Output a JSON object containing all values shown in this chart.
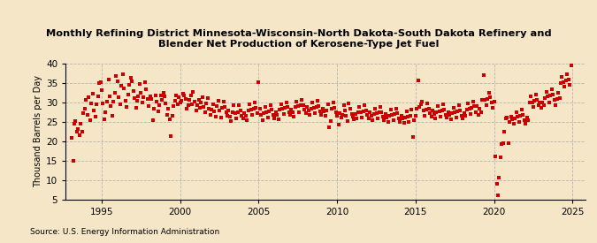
{
  "title": "Monthly Refining District Minnesota-Wisconsin-North Dakota-South Dakota Refinery and\nBlender Net Production of Kerosene-Type Jet Fuel",
  "ylabel": "Thousand Barrels per Day",
  "source": "Source: U.S. Energy Information Administration",
  "background_color": "#f5e6c8",
  "plot_bg_color": "#f5e6c8",
  "marker_color": "#cc0000",
  "marker_size": 5,
  "ylim": [
    5,
    40
  ],
  "yticks": [
    5,
    10,
    15,
    20,
    25,
    30,
    35,
    40
  ],
  "xlim_start": 1992.7,
  "xlim_end": 2025.8,
  "xticks": [
    1995,
    2000,
    2005,
    2010,
    2015,
    2020,
    2025
  ],
  "data": [
    [
      1993.08,
      20.8
    ],
    [
      1993.17,
      15.0
    ],
    [
      1993.25,
      24.5
    ],
    [
      1993.33,
      25.2
    ],
    [
      1993.42,
      22.3
    ],
    [
      1993.5,
      23.0
    ],
    [
      1993.58,
      21.5
    ],
    [
      1993.67,
      24.5
    ],
    [
      1993.75,
      22.5
    ],
    [
      1993.83,
      27.2
    ],
    [
      1993.92,
      28.3
    ],
    [
      1994.0,
      30.5
    ],
    [
      1994.08,
      26.8
    ],
    [
      1994.17,
      31.2
    ],
    [
      1994.25,
      25.4
    ],
    [
      1994.33,
      29.7
    ],
    [
      1994.42,
      32.1
    ],
    [
      1994.5,
      27.8
    ],
    [
      1994.58,
      26.3
    ],
    [
      1994.67,
      29.5
    ],
    [
      1994.75,
      31.4
    ],
    [
      1994.83,
      34.8
    ],
    [
      1994.92,
      35.2
    ],
    [
      1995.0,
      33.1
    ],
    [
      1995.08,
      29.7
    ],
    [
      1995.17,
      25.6
    ],
    [
      1995.25,
      27.4
    ],
    [
      1995.33,
      30.2
    ],
    [
      1995.42,
      35.8
    ],
    [
      1995.5,
      31.5
    ],
    [
      1995.58,
      28.9
    ],
    [
      1995.67,
      26.4
    ],
    [
      1995.75,
      30.1
    ],
    [
      1995.83,
      32.5
    ],
    [
      1995.92,
      36.8
    ],
    [
      1996.0,
      35.3
    ],
    [
      1996.08,
      31.2
    ],
    [
      1996.17,
      29.5
    ],
    [
      1996.25,
      34.2
    ],
    [
      1996.33,
      37.1
    ],
    [
      1996.42,
      33.6
    ],
    [
      1996.5,
      30.4
    ],
    [
      1996.58,
      28.7
    ],
    [
      1996.67,
      31.9
    ],
    [
      1996.75,
      34.5
    ],
    [
      1996.83,
      36.2
    ],
    [
      1996.92,
      35.4
    ],
    [
      1997.0,
      32.8
    ],
    [
      1997.08,
      31.1
    ],
    [
      1997.17,
      28.6
    ],
    [
      1997.25,
      30.3
    ],
    [
      1997.33,
      31.5
    ],
    [
      1997.42,
      34.7
    ],
    [
      1997.5,
      32.3
    ],
    [
      1997.58,
      29.8
    ],
    [
      1997.67,
      31.2
    ],
    [
      1997.75,
      35.1
    ],
    [
      1997.83,
      33.4
    ],
    [
      1997.92,
      30.7
    ],
    [
      1998.0,
      28.9
    ],
    [
      1998.08,
      31.4
    ],
    [
      1998.17,
      30.8
    ],
    [
      1998.25,
      25.3
    ],
    [
      1998.33,
      28.4
    ],
    [
      1998.42,
      31.7
    ],
    [
      1998.5,
      30.2
    ],
    [
      1998.58,
      27.6
    ],
    [
      1998.67,
      29.1
    ],
    [
      1998.75,
      31.8
    ],
    [
      1998.83,
      30.5
    ],
    [
      1998.92,
      32.3
    ],
    [
      1999.0,
      31.4
    ],
    [
      1999.08,
      29.7
    ],
    [
      1999.17,
      26.8
    ],
    [
      1999.25,
      28.3
    ],
    [
      1999.33,
      25.6
    ],
    [
      1999.42,
      21.2
    ],
    [
      1999.5,
      26.4
    ],
    [
      1999.58,
      28.9
    ],
    [
      1999.67,
      30.3
    ],
    [
      1999.75,
      31.7
    ],
    [
      1999.83,
      29.5
    ],
    [
      1999.92,
      31.2
    ],
    [
      2000.0,
      29.8
    ],
    [
      2000.08,
      30.4
    ],
    [
      2000.17,
      32.1
    ],
    [
      2000.25,
      31.6
    ],
    [
      2000.33,
      30.7
    ],
    [
      2000.42,
      28.3
    ],
    [
      2000.5,
      29.1
    ],
    [
      2000.58,
      30.5
    ],
    [
      2000.67,
      31.8
    ],
    [
      2000.75,
      29.4
    ],
    [
      2000.83,
      32.7
    ],
    [
      2000.92,
      30.1
    ],
    [
      2001.0,
      27.9
    ],
    [
      2001.08,
      29.2
    ],
    [
      2001.17,
      30.6
    ],
    [
      2001.25,
      28.5
    ],
    [
      2001.33,
      29.8
    ],
    [
      2001.42,
      31.3
    ],
    [
      2001.5,
      28.7
    ],
    [
      2001.58,
      27.3
    ],
    [
      2001.67,
      29.6
    ],
    [
      2001.75,
      31.1
    ],
    [
      2001.83,
      28.4
    ],
    [
      2001.92,
      26.8
    ],
    [
      2002.0,
      28.1
    ],
    [
      2002.08,
      29.5
    ],
    [
      2002.17,
      27.6
    ],
    [
      2002.25,
      26.3
    ],
    [
      2002.33,
      28.9
    ],
    [
      2002.42,
      30.4
    ],
    [
      2002.5,
      27.8
    ],
    [
      2002.58,
      26.1
    ],
    [
      2002.67,
      28.5
    ],
    [
      2002.75,
      30.2
    ],
    [
      2002.83,
      28.7
    ],
    [
      2002.92,
      27.3
    ],
    [
      2003.0,
      26.5
    ],
    [
      2003.08,
      27.9
    ],
    [
      2003.17,
      26.2
    ],
    [
      2003.25,
      25.1
    ],
    [
      2003.33,
      27.4
    ],
    [
      2003.42,
      29.3
    ],
    [
      2003.5,
      27.1
    ],
    [
      2003.58,
      25.8
    ],
    [
      2003.67,
      27.5
    ],
    [
      2003.75,
      29.1
    ],
    [
      2003.83,
      27.8
    ],
    [
      2003.92,
      26.4
    ],
    [
      2004.0,
      25.7
    ],
    [
      2004.08,
      27.2
    ],
    [
      2004.17,
      26.5
    ],
    [
      2004.25,
      25.3
    ],
    [
      2004.33,
      27.8
    ],
    [
      2004.42,
      29.4
    ],
    [
      2004.5,
      28.1
    ],
    [
      2004.58,
      26.7
    ],
    [
      2004.67,
      28.3
    ],
    [
      2004.75,
      29.8
    ],
    [
      2004.83,
      28.5
    ],
    [
      2004.92,
      27.1
    ],
    [
      2005.0,
      35.2
    ],
    [
      2005.08,
      28.4
    ],
    [
      2005.17,
      26.8
    ],
    [
      2005.25,
      25.4
    ],
    [
      2005.33,
      27.1
    ],
    [
      2005.42,
      28.7
    ],
    [
      2005.5,
      27.3
    ],
    [
      2005.58,
      26.0
    ],
    [
      2005.67,
      27.6
    ],
    [
      2005.75,
      29.2
    ],
    [
      2005.83,
      28.0
    ],
    [
      2005.92,
      26.7
    ],
    [
      2006.0,
      25.9
    ],
    [
      2006.08,
      27.4
    ],
    [
      2006.17,
      26.7
    ],
    [
      2006.25,
      25.5
    ],
    [
      2006.33,
      28.0
    ],
    [
      2006.42,
      29.5
    ],
    [
      2006.5,
      28.2
    ],
    [
      2006.58,
      26.9
    ],
    [
      2006.67,
      28.5
    ],
    [
      2006.75,
      30.0
    ],
    [
      2006.83,
      28.7
    ],
    [
      2006.92,
      27.3
    ],
    [
      2007.0,
      26.6
    ],
    [
      2007.08,
      28.1
    ],
    [
      2007.17,
      27.3
    ],
    [
      2007.25,
      26.2
    ],
    [
      2007.33,
      28.7
    ],
    [
      2007.42,
      30.2
    ],
    [
      2007.5,
      28.9
    ],
    [
      2007.58,
      27.5
    ],
    [
      2007.67,
      29.1
    ],
    [
      2007.75,
      30.6
    ],
    [
      2007.83,
      29.3
    ],
    [
      2007.92,
      28.0
    ],
    [
      2008.0,
      27.2
    ],
    [
      2008.08,
      28.7
    ],
    [
      2008.17,
      27.9
    ],
    [
      2008.25,
      26.8
    ],
    [
      2008.33,
      28.3
    ],
    [
      2008.42,
      29.8
    ],
    [
      2008.5,
      28.5
    ],
    [
      2008.58,
      27.2
    ],
    [
      2008.67,
      28.8
    ],
    [
      2008.75,
      30.3
    ],
    [
      2008.83,
      29.0
    ],
    [
      2008.92,
      27.6
    ],
    [
      2009.0,
      26.8
    ],
    [
      2009.08,
      28.3
    ],
    [
      2009.17,
      27.6
    ],
    [
      2009.25,
      26.4
    ],
    [
      2009.33,
      27.9
    ],
    [
      2009.42,
      29.4
    ],
    [
      2009.5,
      23.5
    ],
    [
      2009.58,
      25.1
    ],
    [
      2009.67,
      28.4
    ],
    [
      2009.75,
      29.9
    ],
    [
      2009.83,
      28.6
    ],
    [
      2009.92,
      27.3
    ],
    [
      2010.0,
      26.5
    ],
    [
      2010.08,
      24.2
    ],
    [
      2010.17,
      27.2
    ],
    [
      2010.25,
      26.1
    ],
    [
      2010.33,
      26.7
    ],
    [
      2010.42,
      29.2
    ],
    [
      2010.5,
      27.8
    ],
    [
      2010.58,
      26.5
    ],
    [
      2010.67,
      25.1
    ],
    [
      2010.75,
      29.6
    ],
    [
      2010.83,
      28.3
    ],
    [
      2010.92,
      27.0
    ],
    [
      2011.0,
      26.2
    ],
    [
      2011.08,
      25.6
    ],
    [
      2011.17,
      26.9
    ],
    [
      2011.25,
      25.8
    ],
    [
      2011.33,
      27.3
    ],
    [
      2011.42,
      28.8
    ],
    [
      2011.5,
      27.5
    ],
    [
      2011.58,
      26.1
    ],
    [
      2011.67,
      27.7
    ],
    [
      2011.75,
      29.2
    ],
    [
      2011.83,
      27.9
    ],
    [
      2011.92,
      26.6
    ],
    [
      2012.0,
      25.8
    ],
    [
      2012.08,
      27.3
    ],
    [
      2012.17,
      26.5
    ],
    [
      2012.25,
      25.4
    ],
    [
      2012.33,
      26.9
    ],
    [
      2012.42,
      28.4
    ],
    [
      2012.5,
      27.1
    ],
    [
      2012.58,
      25.7
    ],
    [
      2012.67,
      27.3
    ],
    [
      2012.75,
      28.8
    ],
    [
      2012.83,
      27.5
    ],
    [
      2012.92,
      26.2
    ],
    [
      2013.0,
      25.4
    ],
    [
      2013.08,
      26.9
    ],
    [
      2013.17,
      26.1
    ],
    [
      2013.25,
      25.0
    ],
    [
      2013.33,
      26.5
    ],
    [
      2013.42,
      28.0
    ],
    [
      2013.5,
      26.7
    ],
    [
      2013.58,
      25.3
    ],
    [
      2013.67,
      26.9
    ],
    [
      2013.75,
      28.4
    ],
    [
      2013.83,
      27.1
    ],
    [
      2013.92,
      25.8
    ],
    [
      2014.0,
      25.0
    ],
    [
      2014.08,
      26.5
    ],
    [
      2014.17,
      25.8
    ],
    [
      2014.25,
      24.6
    ],
    [
      2014.33,
      26.1
    ],
    [
      2014.42,
      27.6
    ],
    [
      2014.5,
      26.3
    ],
    [
      2014.58,
      24.9
    ],
    [
      2014.67,
      26.5
    ],
    [
      2014.75,
      28.0
    ],
    [
      2014.83,
      21.0
    ],
    [
      2014.92,
      25.4
    ],
    [
      2015.0,
      26.5
    ],
    [
      2015.08,
      28.2
    ],
    [
      2015.17,
      35.5
    ],
    [
      2015.25,
      28.8
    ],
    [
      2015.33,
      29.5
    ],
    [
      2015.42,
      30.2
    ],
    [
      2015.5,
      27.8
    ],
    [
      2015.58,
      26.4
    ],
    [
      2015.67,
      28.1
    ],
    [
      2015.75,
      29.7
    ],
    [
      2015.83,
      28.4
    ],
    [
      2015.92,
      27.1
    ],
    [
      2016.0,
      26.3
    ],
    [
      2016.08,
      27.8
    ],
    [
      2016.17,
      27.0
    ],
    [
      2016.25,
      25.9
    ],
    [
      2016.33,
      27.4
    ],
    [
      2016.42,
      28.9
    ],
    [
      2016.5,
      27.6
    ],
    [
      2016.58,
      26.3
    ],
    [
      2016.67,
      27.9
    ],
    [
      2016.75,
      29.4
    ],
    [
      2016.83,
      28.1
    ],
    [
      2016.92,
      26.8
    ],
    [
      2017.0,
      26.0
    ],
    [
      2017.08,
      27.5
    ],
    [
      2017.17,
      26.8
    ],
    [
      2017.25,
      25.6
    ],
    [
      2017.33,
      27.1
    ],
    [
      2017.42,
      28.6
    ],
    [
      2017.5,
      27.3
    ],
    [
      2017.58,
      26.0
    ],
    [
      2017.67,
      27.6
    ],
    [
      2017.75,
      29.1
    ],
    [
      2017.83,
      27.8
    ],
    [
      2017.92,
      26.5
    ],
    [
      2018.0,
      25.7
    ],
    [
      2018.08,
      27.2
    ],
    [
      2018.17,
      26.5
    ],
    [
      2018.25,
      28.1
    ],
    [
      2018.33,
      29.7
    ],
    [
      2018.42,
      28.3
    ],
    [
      2018.5,
      27.0
    ],
    [
      2018.58,
      28.6
    ],
    [
      2018.67,
      30.2
    ],
    [
      2018.75,
      28.9
    ],
    [
      2018.83,
      27.5
    ],
    [
      2018.92,
      29.0
    ],
    [
      2019.0,
      26.7
    ],
    [
      2019.08,
      28.2
    ],
    [
      2019.17,
      27.5
    ],
    [
      2019.25,
      30.5
    ],
    [
      2019.33,
      37.0
    ],
    [
      2019.42,
      30.6
    ],
    [
      2019.5,
      29.3
    ],
    [
      2019.58,
      30.9
    ],
    [
      2019.67,
      32.5
    ],
    [
      2019.75,
      31.2
    ],
    [
      2019.83,
      29.8
    ],
    [
      2019.92,
      28.5
    ],
    [
      2020.0,
      30.1
    ],
    [
      2020.08,
      16.0
    ],
    [
      2020.17,
      9.0
    ],
    [
      2020.25,
      6.0
    ],
    [
      2020.33,
      10.5
    ],
    [
      2020.42,
      15.8
    ],
    [
      2020.5,
      19.2
    ],
    [
      2020.58,
      19.5
    ],
    [
      2020.67,
      22.3
    ],
    [
      2020.75,
      25.7
    ],
    [
      2020.83,
      26.1
    ],
    [
      2020.92,
      19.5
    ],
    [
      2021.0,
      24.8
    ],
    [
      2021.08,
      26.3
    ],
    [
      2021.17,
      25.6
    ],
    [
      2021.25,
      24.4
    ],
    [
      2021.33,
      25.9
    ],
    [
      2021.42,
      27.5
    ],
    [
      2021.5,
      26.2
    ],
    [
      2021.58,
      24.8
    ],
    [
      2021.67,
      26.4
    ],
    [
      2021.75,
      28.0
    ],
    [
      2021.83,
      26.7
    ],
    [
      2021.92,
      25.3
    ],
    [
      2022.0,
      24.5
    ],
    [
      2022.08,
      26.0
    ],
    [
      2022.17,
      25.3
    ],
    [
      2022.25,
      29.8
    ],
    [
      2022.33,
      31.4
    ],
    [
      2022.42,
      30.0
    ],
    [
      2022.5,
      28.7
    ],
    [
      2022.58,
      30.3
    ],
    [
      2022.67,
      31.9
    ],
    [
      2022.75,
      30.6
    ],
    [
      2022.83,
      29.3
    ],
    [
      2022.92,
      30.0
    ],
    [
      2023.0,
      28.5
    ],
    [
      2023.08,
      30.0
    ],
    [
      2023.17,
      29.3
    ],
    [
      2023.25,
      31.1
    ],
    [
      2023.33,
      32.7
    ],
    [
      2023.42,
      31.4
    ],
    [
      2023.5,
      30.0
    ],
    [
      2023.58,
      31.6
    ],
    [
      2023.67,
      33.2
    ],
    [
      2023.75,
      31.9
    ],
    [
      2023.83,
      30.6
    ],
    [
      2023.92,
      29.2
    ],
    [
      2024.0,
      30.8
    ],
    [
      2024.08,
      32.4
    ],
    [
      2024.17,
      31.1
    ],
    [
      2024.25,
      35.0
    ],
    [
      2024.33,
      36.5
    ],
    [
      2024.42,
      35.2
    ],
    [
      2024.5,
      33.9
    ],
    [
      2024.58,
      35.5
    ],
    [
      2024.67,
      37.1
    ],
    [
      2024.75,
      35.8
    ],
    [
      2024.83,
      34.5
    ],
    [
      2024.92,
      39.5
    ]
  ]
}
